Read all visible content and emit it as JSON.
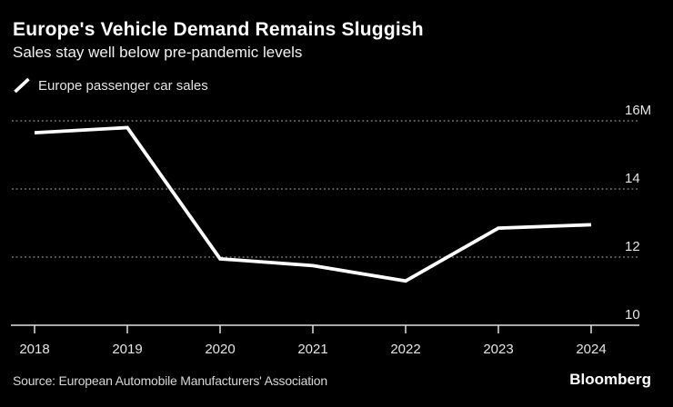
{
  "header": {
    "title": "Europe's Vehicle Demand Remains Sluggish",
    "subtitle": "Sales stay well below pre-pandemic levels"
  },
  "legend": {
    "label": "Europe passenger car sales",
    "marker": "white-slash-line"
  },
  "chart_data": {
    "type": "line",
    "title": "Europe's Vehicle Demand Remains Sluggish",
    "subtitle": "Sales stay well below pre-pandemic levels",
    "categories": [
      "2018",
      "2019",
      "2020",
      "2021",
      "2022",
      "2023",
      "2024"
    ],
    "series": [
      {
        "name": "Europe passenger car sales",
        "values": [
          15.65,
          15.8,
          11.95,
          11.75,
          11.3,
          12.85,
          12.95
        ]
      }
    ],
    "unit": "M",
    "ylabel": "",
    "xlabel": "",
    "ylim": [
      10,
      16
    ],
    "yticks": [
      10,
      12,
      14,
      16
    ],
    "ytick_labels": [
      "10",
      "12",
      "14",
      "16M"
    ],
    "grid": "horizontal-dotted",
    "baseline_axis": "bottom-solid-with-ticks",
    "legend_position": "top-left",
    "ytick_label_side": "right"
  },
  "footer": {
    "source": "Source: European Automobile Manufacturers' Association",
    "brand": "Bloomberg"
  },
  "colors": {
    "background": "#000000",
    "series_line": "#ffffff",
    "title_text": "#ffffff",
    "axis_text": "#e5e5e5",
    "gridline": "#7a7a7a",
    "axis_line": "#e0e0e0",
    "source_text": "#d8d8d8",
    "brand_text": "#ffffff"
  }
}
